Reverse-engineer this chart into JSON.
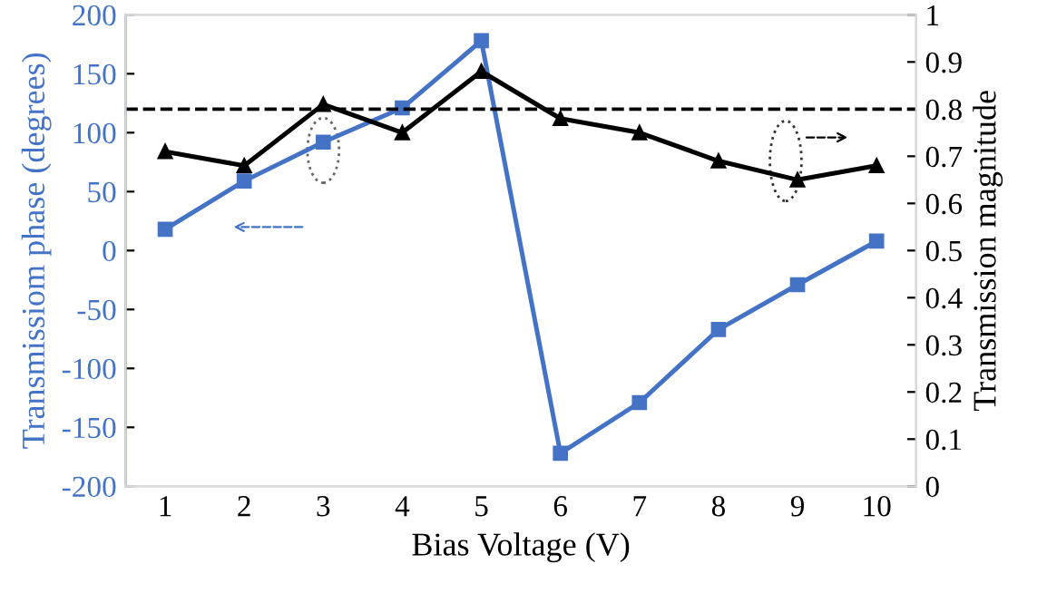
{
  "chart_data": {
    "type": "line",
    "xlabel": "Bias Voltage (V)",
    "ylabel": "Transmissiom phase (degrees)",
    "y2label": "Transmission magnitude",
    "categories": [
      "1",
      "2",
      "3",
      "4",
      "5",
      "6",
      "7",
      "8",
      "9",
      "10"
    ],
    "series": [
      {
        "color": "#4472c4",
        "marker": "square",
        "values": [
          18,
          59,
          92,
          121,
          178,
          -172,
          -129,
          -67,
          -29,
          8
        ]
      },
      {
        "color": "#000000",
        "marker": "triangle",
        "axis": "y2",
        "values": [
          0.71,
          0.68,
          0.81,
          0.75,
          0.88,
          0.78,
          0.75,
          0.69,
          0.65,
          0.68
        ]
      }
    ],
    "ylim": [
      -200,
      200
    ],
    "yticks": [
      -200,
      -150,
      -100,
      -50,
      0,
      50,
      100,
      150,
      200
    ],
    "y2lim": [
      0,
      1
    ],
    "y2ticks": [
      0,
      0.1,
      0.2,
      0.3,
      0.4,
      0.5,
      0.6,
      0.7,
      0.8,
      0.9,
      1
    ],
    "ref_lines": [
      {
        "axis": "y2",
        "value": 0.8,
        "color": "#000000",
        "line_style": "dashed"
      }
    ],
    "grid": false,
    "legend": false,
    "line_style": "solid"
  }
}
